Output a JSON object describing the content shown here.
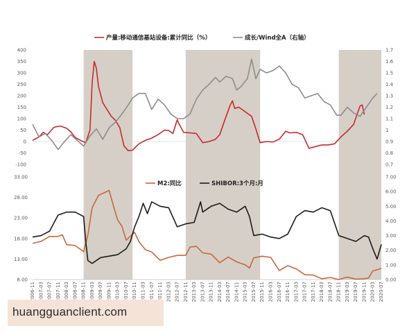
{
  "chart_data": [
    {
      "type": "line",
      "x_start": "2006-11",
      "x_end": "2020-07",
      "shaded_periods": [
        [
          "2008-11",
          "2010-10"
        ],
        [
          "2012-11",
          "2015-10"
        ],
        [
          "2018-11",
          "2020-07"
        ]
      ],
      "left_axis": {
        "ylim": [
          -100,
          400
        ],
        "ticks": [
          -100,
          -50,
          0,
          50,
          100,
          150,
          200,
          250,
          300,
          350,
          400
        ]
      },
      "right_axis": {
        "ylim": [
          0.7,
          1.7
        ],
        "ticks": [
          "0.7",
          "0.8",
          "0.9",
          "1",
          "1.1",
          "1.2",
          "1.3",
          "1.4",
          "1.5",
          "1.6",
          "1.7"
        ]
      },
      "series": [
        {
          "name": "产量:移动通信基站设备:累计同比（%）",
          "axis": "left",
          "color": "#c8282a",
          "points": [
            [
              "2006-11",
              5
            ],
            [
              "2007-02",
              20
            ],
            [
              "2007-04",
              40
            ],
            [
              "2007-06",
              30
            ],
            [
              "2007-09",
              62
            ],
            [
              "2007-12",
              68
            ],
            [
              "2008-03",
              58
            ],
            [
              "2008-05",
              42
            ],
            [
              "2008-07",
              18
            ],
            [
              "2008-10",
              3
            ],
            [
              "2008-12",
              -5
            ],
            [
              "2009-02",
              50
            ],
            [
              "2009-03",
              255
            ],
            [
              "2009-04",
              350
            ],
            [
              "2009-05",
              320
            ],
            [
              "2009-06",
              240
            ],
            [
              "2009-08",
              170
            ],
            [
              "2009-10",
              140
            ],
            [
              "2009-12",
              110
            ],
            [
              "2010-02",
              92
            ],
            [
              "2010-04",
              60
            ],
            [
              "2010-06",
              -20
            ],
            [
              "2010-08",
              -40
            ],
            [
              "2010-10",
              -38
            ],
            [
              "2011-01",
              -10
            ],
            [
              "2011-04",
              5
            ],
            [
              "2011-07",
              15
            ],
            [
              "2011-10",
              30
            ],
            [
              "2012-01",
              50
            ],
            [
              "2012-03",
              48
            ],
            [
              "2012-05",
              35
            ],
            [
              "2012-07",
              95
            ],
            [
              "2012-08",
              75
            ],
            [
              "2012-10",
              40
            ],
            [
              "2013-01",
              38
            ],
            [
              "2013-04",
              35
            ],
            [
              "2013-07",
              -5
            ],
            [
              "2013-10",
              0
            ],
            [
              "2014-01",
              10
            ],
            [
              "2014-03",
              30
            ],
            [
              "2014-06",
              110
            ],
            [
              "2014-08",
              160
            ],
            [
              "2014-09",
              178
            ],
            [
              "2014-10",
              145
            ],
            [
              "2014-12",
              150
            ],
            [
              "2015-03",
              130
            ],
            [
              "2015-06",
              110
            ],
            [
              "2015-08",
              55
            ],
            [
              "2015-10",
              -5
            ],
            [
              "2016-01",
              0
            ],
            [
              "2016-04",
              -2
            ],
            [
              "2016-07",
              10
            ],
            [
              "2016-10",
              45
            ],
            [
              "2016-12",
              38
            ],
            [
              "2017-03",
              40
            ],
            [
              "2017-06",
              30
            ],
            [
              "2017-09",
              -30
            ],
            [
              "2017-12",
              -22
            ],
            [
              "2018-03",
              -15
            ],
            [
              "2018-06",
              -15
            ],
            [
              "2018-09",
              -10
            ],
            [
              "2018-12",
              20
            ],
            [
              "2019-03",
              45
            ],
            [
              "2019-06",
              75
            ],
            [
              "2019-08",
              130
            ],
            [
              "2019-09",
              155
            ],
            [
              "2019-10",
              160
            ],
            [
              "2019-11",
              118
            ]
          ]
        },
        {
          "name": "成长/Wind全A（右轴）",
          "axis": "right",
          "color": "#8c8c8c",
          "points": [
            [
              "2006-11",
              1.05
            ],
            [
              "2007-02",
              0.94
            ],
            [
              "2007-05",
              0.97
            ],
            [
              "2007-08",
              0.91
            ],
            [
              "2007-11",
              0.83
            ],
            [
              "2008-02",
              0.9
            ],
            [
              "2008-05",
              0.96
            ],
            [
              "2008-08",
              0.91
            ],
            [
              "2008-11",
              0.86
            ],
            [
              "2009-02",
              0.95
            ],
            [
              "2009-05",
              1.01
            ],
            [
              "2009-08",
              0.92
            ],
            [
              "2009-11",
              1.02
            ],
            [
              "2010-02",
              1.07
            ],
            [
              "2010-05",
              1.14
            ],
            [
              "2010-08",
              1.22
            ],
            [
              "2010-10",
              1.28
            ],
            [
              "2011-01",
              1.32
            ],
            [
              "2011-04",
              1.32
            ],
            [
              "2011-07",
              1.18
            ],
            [
              "2011-10",
              1.27
            ],
            [
              "2012-01",
              1.22
            ],
            [
              "2012-04",
              1.14
            ],
            [
              "2012-07",
              1.1
            ],
            [
              "2012-10",
              1.1
            ],
            [
              "2013-01",
              1.14
            ],
            [
              "2013-04",
              1.27
            ],
            [
              "2013-07",
              1.35
            ],
            [
              "2013-10",
              1.4
            ],
            [
              "2014-01",
              1.46
            ],
            [
              "2014-03",
              1.42
            ],
            [
              "2014-06",
              1.47
            ],
            [
              "2014-09",
              1.45
            ],
            [
              "2014-11",
              1.35
            ],
            [
              "2015-01",
              1.38
            ],
            [
              "2015-04",
              1.45
            ],
            [
              "2015-06",
              1.62
            ],
            [
              "2015-08",
              1.45
            ],
            [
              "2015-10",
              1.53
            ],
            [
              "2016-01",
              1.5
            ],
            [
              "2016-04",
              1.52
            ],
            [
              "2016-07",
              1.56
            ],
            [
              "2016-10",
              1.5
            ],
            [
              "2017-01",
              1.4
            ],
            [
              "2017-04",
              1.37
            ],
            [
              "2017-07",
              1.28
            ],
            [
              "2017-10",
              1.3
            ],
            [
              "2018-01",
              1.32
            ],
            [
              "2018-04",
              1.25
            ],
            [
              "2018-07",
              1.22
            ],
            [
              "2018-10",
              1.13
            ],
            [
              "2018-12",
              1.13
            ],
            [
              "2019-03",
              1.2
            ],
            [
              "2019-06",
              1.15
            ],
            [
              "2019-09",
              1.12
            ],
            [
              "2019-12",
              1.2
            ],
            [
              "2020-03",
              1.28
            ],
            [
              "2020-05",
              1.32
            ]
          ]
        }
      ],
      "legend_position": "top"
    },
    {
      "type": "line",
      "x_start": "2006-11",
      "x_end": "2020-07",
      "shaded_periods": [
        [
          "2008-11",
          "2010-10"
        ],
        [
          "2012-11",
          "2015-10"
        ],
        [
          "2018-11",
          "2020-07"
        ]
      ],
      "left_axis": {
        "ylim": [
          8,
          33
        ],
        "ticks": [
          "8.00",
          "13.00",
          "18.00",
          "23.00",
          "28.00",
          "33.00"
        ]
      },
      "right_axis": {
        "ylim": [
          0,
          7
        ],
        "ticks": [
          "0.00",
          "1.00",
          "2.00",
          "3.00",
          "4.00",
          "5.00",
          "6.00",
          "7.00"
        ]
      },
      "x_tick_labels": [
        "2006-11",
        "2007-03",
        "2007-07",
        "2007-11",
        "2008-03",
        "2008-07",
        "2008-11",
        "2009-03",
        "2009-07",
        "2009-11",
        "2010-03",
        "2010-07",
        "2010-11",
        "2011-03",
        "2011-07",
        "2011-11",
        "2012-03",
        "2012-07",
        "2012-11",
        "2013-03",
        "2013-07",
        "2013-11",
        "2014-03",
        "2014-07",
        "2014-11",
        "2015-03",
        "2015-07",
        "2015-11",
        "2016-03",
        "2016-07",
        "2016-11",
        "2017-03",
        "2017-07",
        "2017-11",
        "2018-03",
        "2018-07",
        "2018-11",
        "2019-03",
        "2019-07",
        "2019-11",
        "2020-03",
        "2020-07"
      ],
      "series": [
        {
          "name": "M2:同比",
          "axis": "left",
          "color": "#c8673a",
          "points": [
            [
              "2006-11",
              16.8
            ],
            [
              "2007-03",
              17.3
            ],
            [
              "2007-07",
              18.5
            ],
            [
              "2007-11",
              18.5
            ],
            [
              "2008-01",
              18.9
            ],
            [
              "2008-03",
              16.5
            ],
            [
              "2008-07",
              16.3
            ],
            [
              "2008-11",
              14.8
            ],
            [
              "2009-01",
              18.8
            ],
            [
              "2009-03",
              25.5
            ],
            [
              "2009-06",
              28.5
            ],
            [
              "2009-11",
              29.7
            ],
            [
              "2010-01",
              26.0
            ],
            [
              "2010-03",
              22.5
            ],
            [
              "2010-05",
              21.0
            ],
            [
              "2010-07",
              17.6
            ],
            [
              "2010-11",
              19.5
            ],
            [
              "2011-01",
              17.2
            ],
            [
              "2011-04",
              15.3
            ],
            [
              "2011-07",
              14.7
            ],
            [
              "2011-11",
              12.7
            ],
            [
              "2012-03",
              13.4
            ],
            [
              "2012-07",
              13.9
            ],
            [
              "2012-11",
              13.9
            ],
            [
              "2013-01",
              15.9
            ],
            [
              "2013-04",
              16.1
            ],
            [
              "2013-07",
              14.5
            ],
            [
              "2013-11",
              14.2
            ],
            [
              "2014-03",
              12.1
            ],
            [
              "2014-07",
              13.5
            ],
            [
              "2014-11",
              12.3
            ],
            [
              "2015-03",
              11.6
            ],
            [
              "2015-05",
              10.8
            ],
            [
              "2015-07",
              13.3
            ],
            [
              "2015-11",
              13.7
            ],
            [
              "2016-03",
              13.4
            ],
            [
              "2016-07",
              10.2
            ],
            [
              "2016-11",
              11.4
            ],
            [
              "2017-03",
              10.6
            ],
            [
              "2017-07",
              9.2
            ],
            [
              "2017-11",
              9.1
            ],
            [
              "2018-03",
              8.2
            ],
            [
              "2018-07",
              8.5
            ],
            [
              "2018-11",
              8.0
            ],
            [
              "2019-03",
              8.6
            ],
            [
              "2019-07",
              8.1
            ],
            [
              "2019-11",
              8.2
            ],
            [
              "2020-01",
              8.4
            ],
            [
              "2020-03",
              10.1
            ],
            [
              "2020-07",
              10.7
            ]
          ]
        },
        {
          "name": "SHIBOR:3个月:月",
          "axis": "right",
          "color": "#1a1a1a",
          "points": [
            [
              "2006-11",
              2.9
            ],
            [
              "2007-03",
              3.0
            ],
            [
              "2007-07",
              3.3
            ],
            [
              "2007-11",
              4.4
            ],
            [
              "2008-03",
              4.6
            ],
            [
              "2008-07",
              4.6
            ],
            [
              "2008-11",
              4.3
            ],
            [
              "2008-12",
              2.6
            ],
            [
              "2009-01",
              1.3
            ],
            [
              "2009-03",
              1.1
            ],
            [
              "2009-07",
              1.5
            ],
            [
              "2009-11",
              1.6
            ],
            [
              "2010-03",
              1.7
            ],
            [
              "2010-07",
              2.1
            ],
            [
              "2010-09",
              2.6
            ],
            [
              "2010-11",
              3.6
            ],
            [
              "2011-01",
              4.3
            ],
            [
              "2011-03",
              5.2
            ],
            [
              "2011-05",
              4.5
            ],
            [
              "2011-07",
              5.3
            ],
            [
              "2011-11",
              5.0
            ],
            [
              "2012-03",
              4.9
            ],
            [
              "2012-07",
              3.6
            ],
            [
              "2012-11",
              3.8
            ],
            [
              "2013-03",
              3.9
            ],
            [
              "2013-06",
              5.3
            ],
            [
              "2013-07",
              4.6
            ],
            [
              "2013-11",
              5.0
            ],
            [
              "2014-03",
              5.2
            ],
            [
              "2014-07",
              4.8
            ],
            [
              "2014-11",
              4.6
            ],
            [
              "2015-03",
              5.0
            ],
            [
              "2015-05",
              4.3
            ],
            [
              "2015-07",
              3.0
            ],
            [
              "2015-11",
              3.1
            ],
            [
              "2016-03",
              2.9
            ],
            [
              "2016-07",
              2.8
            ],
            [
              "2016-11",
              3.1
            ],
            [
              "2017-03",
              4.3
            ],
            [
              "2017-07",
              4.7
            ],
            [
              "2017-11",
              4.6
            ],
            [
              "2018-03",
              4.9
            ],
            [
              "2018-07",
              4.7
            ],
            [
              "2018-11",
              3.0
            ],
            [
              "2019-03",
              2.8
            ],
            [
              "2019-07",
              2.6
            ],
            [
              "2019-11",
              3.0
            ],
            [
              "2020-01",
              2.9
            ],
            [
              "2020-03",
              2.1
            ],
            [
              "2020-05",
              1.4
            ],
            [
              "2020-07",
              2.4
            ]
          ]
        }
      ],
      "legend_position": "top"
    }
  ],
  "watermark": "huangguanclient.com"
}
